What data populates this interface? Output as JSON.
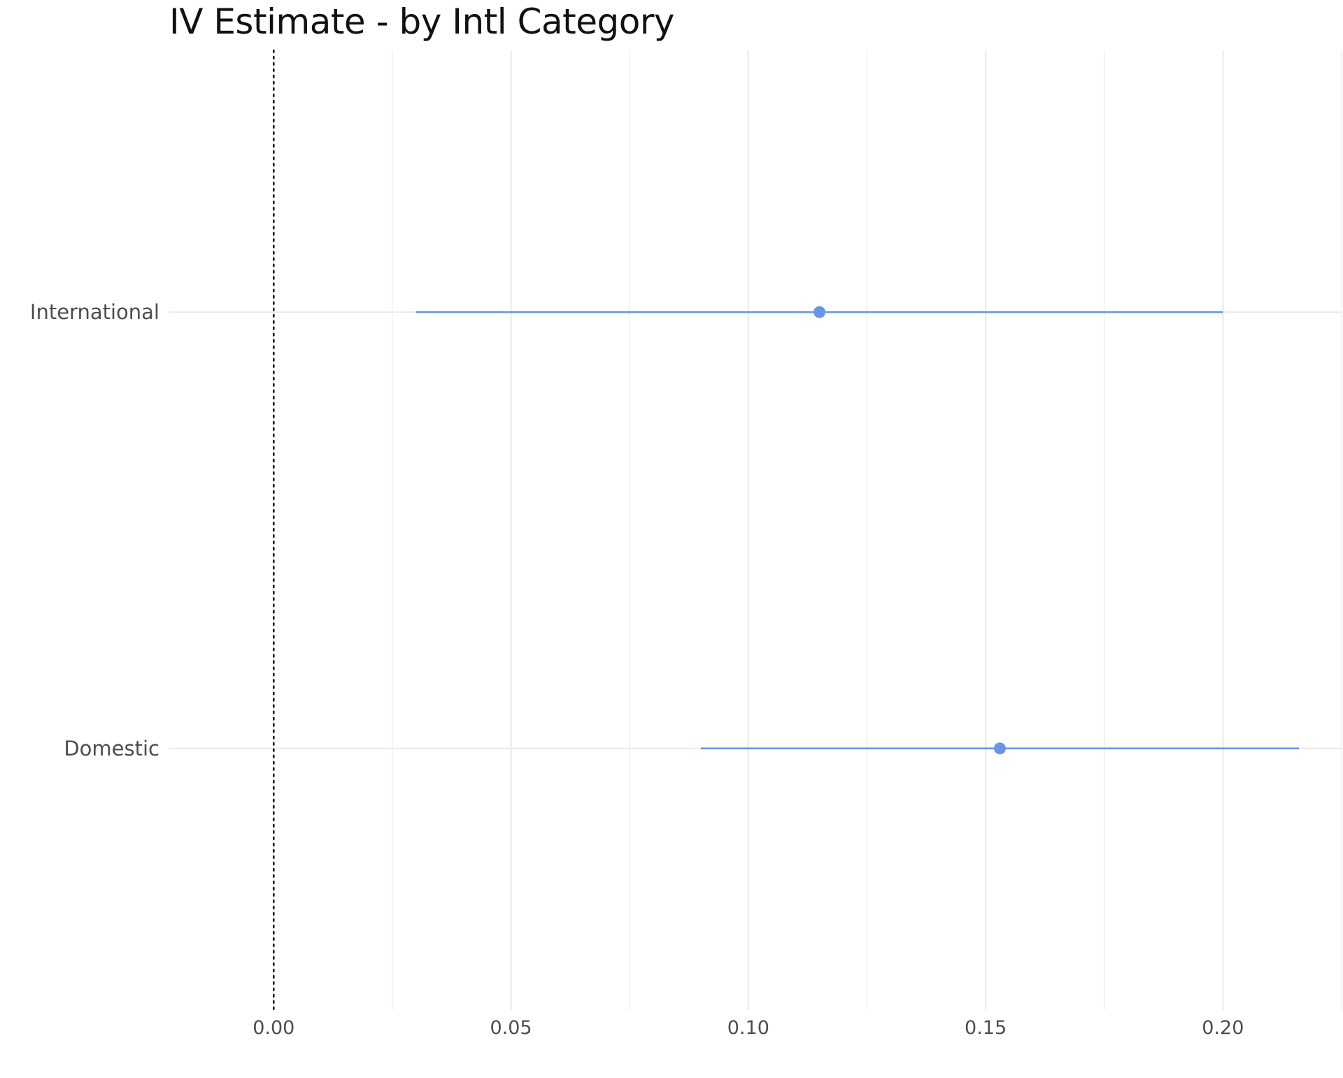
{
  "chart_data": {
    "type": "scatter",
    "title": "IV Estimate - by Intl Category",
    "xlabel": "",
    "ylabel": "",
    "xlim": [
      -0.022,
      0.225
    ],
    "x_ticks": [
      0.0,
      0.05,
      0.1,
      0.15,
      0.2
    ],
    "x_tick_labels": [
      "0.00",
      "0.05",
      "0.10",
      "0.15",
      "0.20"
    ],
    "categories": [
      "International",
      "Domestic"
    ],
    "points": [
      {
        "category": "International",
        "estimate": 0.115,
        "ci_low": 0.03,
        "ci_high": 0.2
      },
      {
        "category": "Domestic",
        "estimate": 0.153,
        "ci_low": 0.09,
        "ci_high": 0.216
      }
    ],
    "reference_line": {
      "x": 0.0,
      "style": "dotted"
    },
    "grid": true,
    "legend": "none",
    "colors": {
      "point": "#6a95e6",
      "interval": "#6a95e6",
      "grid": "#ebebeb",
      "reference": "#111111"
    }
  }
}
